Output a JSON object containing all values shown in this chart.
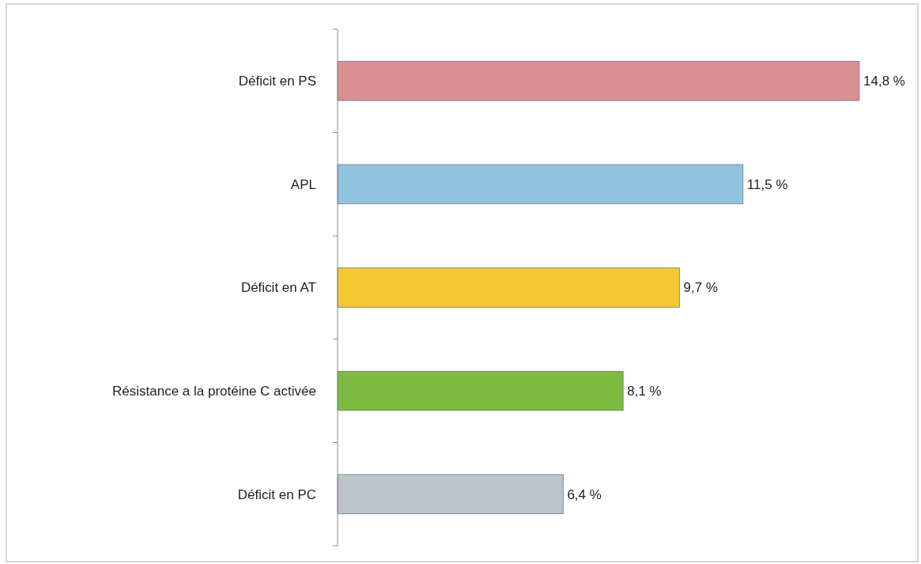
{
  "chart_data": {
    "type": "bar",
    "orientation": "horizontal",
    "categories": [
      "Déficit en PS",
      "APL",
      "Déficit en AT",
      "Résistance a la protéine C activée",
      "Déficit en PC"
    ],
    "values": [
      14.8,
      11.5,
      9.7,
      8.1,
      6.4
    ],
    "colors": [
      "#d98e93",
      "#8ec4de",
      "#f3c832",
      "#7cba42",
      "#bcc5ca"
    ],
    "value_labels": [
      "14,8 %",
      "11,5 %",
      "9,7 %",
      "8,1 %",
      "6,4 %"
    ]
  }
}
